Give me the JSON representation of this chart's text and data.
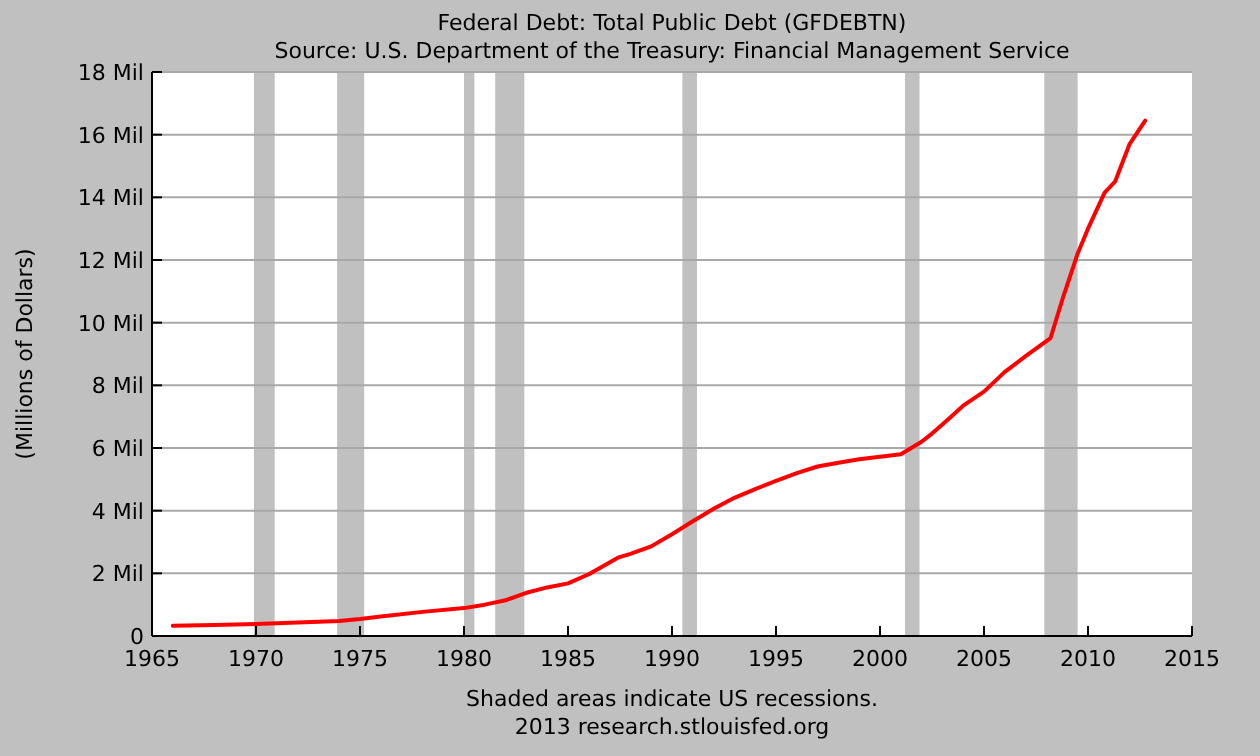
{
  "chart_data": {
    "type": "line",
    "title": "Federal Debt: Total Public Debt (GFDEBTN)",
    "subtitle": "Source: U.S. Department of the Treasury: Financial Management Service",
    "ylabel": "(Millions of Dollars)",
    "annotations": [
      "Shaded areas indicate US recessions.",
      "2013 research.stlouisfed.org"
    ],
    "x": [
      1966,
      1968,
      1970,
      1972,
      1974,
      1975,
      1976,
      1978,
      1980,
      1981,
      1982,
      1983,
      1984,
      1985,
      1986,
      1987.4,
      1988,
      1989,
      1990,
      1991,
      1992,
      1993,
      1994,
      1995,
      1996,
      1997,
      1998,
      1999,
      2000,
      2001,
      2002,
      2002.5,
      2003,
      2004,
      2005,
      2006,
      2007,
      2008.2,
      2008.75,
      2009.5,
      2010,
      2010.8,
      2011.3,
      2012,
      2012.75
    ],
    "series": [
      {
        "color": "#ff0000",
        "values": [
          0.33,
          0.35,
          0.38,
          0.43,
          0.48,
          0.54,
          0.62,
          0.77,
          0.89,
          1.0,
          1.14,
          1.38,
          1.55,
          1.68,
          1.97,
          2.5,
          2.62,
          2.86,
          3.25,
          3.66,
          4.06,
          4.41,
          4.69,
          4.95,
          5.2,
          5.41,
          5.53,
          5.64,
          5.72,
          5.8,
          6.2,
          6.46,
          6.75,
          7.35,
          7.8,
          8.43,
          8.93,
          9.51,
          10.7,
          12.2,
          13.0,
          14.15,
          14.5,
          15.7,
          16.45
        ]
      }
    ],
    "xlim": [
      1965,
      2015
    ],
    "xticks": [
      1965,
      1970,
      1975,
      1980,
      1985,
      1990,
      1995,
      2000,
      2005,
      2010,
      2015
    ],
    "ylim": [
      0,
      18
    ],
    "yticks": [
      0,
      {
        "value": 2,
        "label": "2 Mil"
      },
      {
        "value": 4,
        "label": "4 Mil"
      },
      {
        "value": 6,
        "label": "6 Mil"
      },
      {
        "value": 8,
        "label": "8 Mil"
      },
      {
        "value": 10,
        "label": "10 Mil"
      },
      {
        "value": 12,
        "label": "12 Mil"
      },
      {
        "value": 14,
        "label": "14 Mil"
      },
      {
        "value": 16,
        "label": "16 Mil"
      },
      {
        "value": 18,
        "label": "18 Mil"
      }
    ],
    "bands": [
      {
        "axis": "x",
        "from": 1969.9,
        "to": 1970.9,
        "color": "#c0c0c0"
      },
      {
        "axis": "x",
        "from": 1973.9,
        "to": 1975.2,
        "color": "#c0c0c0"
      },
      {
        "axis": "x",
        "from": 1980.0,
        "to": 1980.5,
        "color": "#c0c0c0"
      },
      {
        "axis": "x",
        "from": 1981.5,
        "to": 1982.9,
        "color": "#c0c0c0"
      },
      {
        "axis": "x",
        "from": 1990.5,
        "to": 1991.2,
        "color": "#c0c0c0"
      },
      {
        "axis": "x",
        "from": 2001.2,
        "to": 2001.9,
        "color": "#c0c0c0"
      },
      {
        "axis": "x",
        "from": 2007.9,
        "to": 2009.5,
        "color": "#c0c0c0"
      }
    ],
    "grid": "y",
    "marker": "none",
    "line_style": "solid"
  }
}
